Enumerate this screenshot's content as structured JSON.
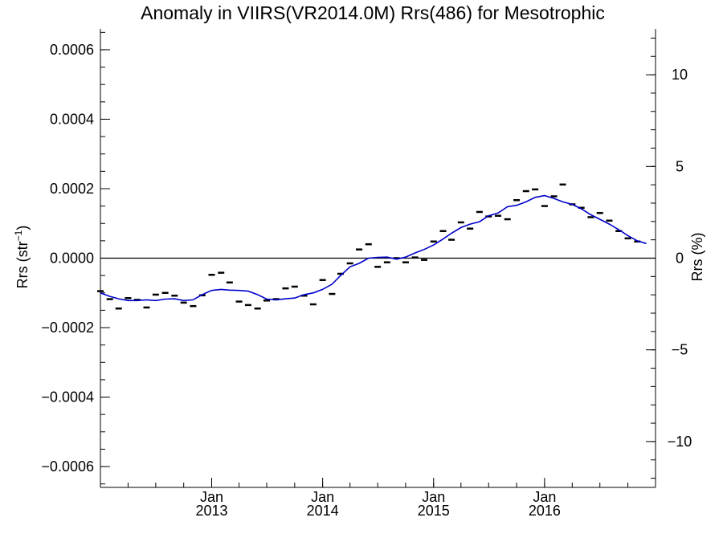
{
  "chart_data": {
    "type": "line",
    "title": "Anomaly in VIIRS(VR2014.0M) Rrs(486) for Mesotrophic",
    "ylabel_left": "Rrs (str",
    "ylabel_left_sup": "−1",
    "ylabel_left_end": ")",
    "ylabel_right": "Rrs (%)",
    "xlim": [
      "2012-01-01",
      "2016-12-31"
    ],
    "ylim_left": [
      -0.00066,
      0.00066
    ],
    "ylim_right": [
      -12.5,
      12.5
    ],
    "left_ticks": [
      {
        "value": 0.0006,
        "label": "0.0006"
      },
      {
        "value": 0.0004,
        "label": "0.0004"
      },
      {
        "value": 0.0002,
        "label": "0.0002"
      },
      {
        "value": 0.0,
        "label": "0.0000"
      },
      {
        "value": -0.0002,
        "label": "−0.0002"
      },
      {
        "value": -0.0004,
        "label": "−0.0004"
      },
      {
        "value": -0.0006,
        "label": "−0.0006"
      }
    ],
    "right_ticks": [
      {
        "value": 10,
        "label": "10"
      },
      {
        "value": 5,
        "label": "5"
      },
      {
        "value": 0,
        "label": "0"
      },
      {
        "value": -5,
        "label": "−5"
      },
      {
        "value": -10,
        "label": "−10"
      }
    ],
    "x_ticks": [
      {
        "date": "2013-01-01",
        "month": "Jan",
        "year": "2013"
      },
      {
        "date": "2014-01-01",
        "month": "Jan",
        "year": "2014"
      },
      {
        "date": "2015-01-01",
        "month": "Jan",
        "year": "2015"
      },
      {
        "date": "2016-01-01",
        "month": "Jan",
        "year": "2016"
      }
    ],
    "zero_line": 0,
    "series": [
      {
        "style": "markers",
        "color": "#000000",
        "points": [
          {
            "x": "2012-01-01",
            "y": -9.5e-05
          },
          {
            "x": "2012-02-01",
            "y": -0.000118
          },
          {
            "x": "2012-03-01",
            "y": -0.000145
          },
          {
            "x": "2012-04-01",
            "y": -0.000115
          },
          {
            "x": "2012-05-01",
            "y": -0.00012
          },
          {
            "x": "2012-06-01",
            "y": -0.000142
          },
          {
            "x": "2012-07-01",
            "y": -0.000105
          },
          {
            "x": "2012-08-01",
            "y": -0.0001
          },
          {
            "x": "2012-09-01",
            "y": -0.000108
          },
          {
            "x": "2012-10-01",
            "y": -0.000128
          },
          {
            "x": "2012-11-01",
            "y": -0.000138
          },
          {
            "x": "2012-12-01",
            "y": -0.000107
          },
          {
            "x": "2013-01-01",
            "y": -4.8e-05
          },
          {
            "x": "2013-02-01",
            "y": -4.2e-05
          },
          {
            "x": "2013-03-01",
            "y": -7e-05
          },
          {
            "x": "2013-04-01",
            "y": -0.000125
          },
          {
            "x": "2013-05-01",
            "y": -0.000135
          },
          {
            "x": "2013-06-01",
            "y": -0.000145
          },
          {
            "x": "2013-07-01",
            "y": -0.000122
          },
          {
            "x": "2013-08-01",
            "y": -0.000118
          },
          {
            "x": "2013-09-01",
            "y": -8.7e-05
          },
          {
            "x": "2013-10-01",
            "y": -8.2e-05
          },
          {
            "x": "2013-11-01",
            "y": -0.000108
          },
          {
            "x": "2013-12-01",
            "y": -0.000133
          },
          {
            "x": "2014-01-01",
            "y": -6.3e-05
          },
          {
            "x": "2014-02-01",
            "y": -0.000103
          },
          {
            "x": "2014-03-01",
            "y": -4.5e-05
          },
          {
            "x": "2014-04-01",
            "y": -1.5e-05
          },
          {
            "x": "2014-05-01",
            "y": 2.5e-05
          },
          {
            "x": "2014-06-01",
            "y": 4e-05
          },
          {
            "x": "2014-07-01",
            "y": -2.5e-05
          },
          {
            "x": "2014-08-01",
            "y": -1.2e-05
          },
          {
            "x": "2014-09-01",
            "y": 0.0
          },
          {
            "x": "2014-10-01",
            "y": -1.2e-05
          },
          {
            "x": "2014-11-01",
            "y": 2e-06
          },
          {
            "x": "2014-12-01",
            "y": -5e-06
          },
          {
            "x": "2015-01-01",
            "y": 4.8e-05
          },
          {
            "x": "2015-02-01",
            "y": 7.8e-05
          },
          {
            "x": "2015-03-01",
            "y": 5.3e-05
          },
          {
            "x": "2015-04-01",
            "y": 0.000103
          },
          {
            "x": "2015-05-01",
            "y": 8.5e-05
          },
          {
            "x": "2015-06-01",
            "y": 0.000133
          },
          {
            "x": "2015-07-01",
            "y": 0.00012
          },
          {
            "x": "2015-08-01",
            "y": 0.000122
          },
          {
            "x": "2015-09-01",
            "y": 0.000112
          },
          {
            "x": "2015-10-01",
            "y": 0.000167
          },
          {
            "x": "2015-11-01",
            "y": 0.000193
          },
          {
            "x": "2015-12-01",
            "y": 0.000198
          },
          {
            "x": "2016-01-01",
            "y": 0.00015
          },
          {
            "x": "2016-02-01",
            "y": 0.000178
          },
          {
            "x": "2016-03-01",
            "y": 0.000212
          },
          {
            "x": "2016-04-01",
            "y": 0.000155
          },
          {
            "x": "2016-05-01",
            "y": 0.000145
          },
          {
            "x": "2016-06-01",
            "y": 0.000118
          },
          {
            "x": "2016-07-01",
            "y": 0.00013
          },
          {
            "x": "2016-08-01",
            "y": 0.000108
          },
          {
            "x": "2016-09-01",
            "y": 7.8e-05
          },
          {
            "x": "2016-10-01",
            "y": 5.7e-05
          },
          {
            "x": "2016-11-01",
            "y": 4.8e-05
          }
        ]
      },
      {
        "style": "line",
        "color": "#0000cc",
        "points": [
          {
            "x": "2012-01-01",
            "y": -0.0001
          },
          {
            "x": "2012-02-01",
            "y": -0.00011
          },
          {
            "x": "2012-03-01",
            "y": -0.000117
          },
          {
            "x": "2012-04-01",
            "y": -0.000122
          },
          {
            "x": "2012-05-01",
            "y": -0.000122
          },
          {
            "x": "2012-06-01",
            "y": -0.00012
          },
          {
            "x": "2012-07-01",
            "y": -0.000122
          },
          {
            "x": "2012-08-01",
            "y": -0.000118
          },
          {
            "x": "2012-09-01",
            "y": -0.000117
          },
          {
            "x": "2012-10-01",
            "y": -0.000122
          },
          {
            "x": "2012-11-01",
            "y": -0.00012
          },
          {
            "x": "2012-12-01",
            "y": -0.000105
          },
          {
            "x": "2013-01-01",
            "y": -9.3e-05
          },
          {
            "x": "2013-02-01",
            "y": -9e-05
          },
          {
            "x": "2013-03-01",
            "y": -9.2e-05
          },
          {
            "x": "2013-04-01",
            "y": -9.3e-05
          },
          {
            "x": "2013-05-01",
            "y": -9.5e-05
          },
          {
            "x": "2013-06-01",
            "y": -0.000105
          },
          {
            "x": "2013-07-01",
            "y": -0.000118
          },
          {
            "x": "2013-08-01",
            "y": -0.00012
          },
          {
            "x": "2013-09-01",
            "y": -0.000117
          },
          {
            "x": "2013-10-01",
            "y": -0.000115
          },
          {
            "x": "2013-11-01",
            "y": -0.000105
          },
          {
            "x": "2013-12-01",
            "y": -0.0001
          },
          {
            "x": "2014-01-01",
            "y": -9e-05
          },
          {
            "x": "2014-02-01",
            "y": -7.5e-05
          },
          {
            "x": "2014-03-01",
            "y": -5e-05
          },
          {
            "x": "2014-04-01",
            "y": -2.5e-05
          },
          {
            "x": "2014-05-01",
            "y": -1.5e-05
          },
          {
            "x": "2014-06-01",
            "y": 0.0
          },
          {
            "x": "2014-07-01",
            "y": 2e-06
          },
          {
            "x": "2014-08-01",
            "y": 3e-06
          },
          {
            "x": "2014-09-01",
            "y": -3e-06
          },
          {
            "x": "2014-10-01",
            "y": 3e-06
          },
          {
            "x": "2014-11-01",
            "y": 1.5e-05
          },
          {
            "x": "2014-12-01",
            "y": 2.5e-05
          },
          {
            "x": "2015-01-01",
            "y": 3.8e-05
          },
          {
            "x": "2015-02-01",
            "y": 5.5e-05
          },
          {
            "x": "2015-03-01",
            "y": 7.2e-05
          },
          {
            "x": "2015-04-01",
            "y": 8.8e-05
          },
          {
            "x": "2015-05-01",
            "y": 9.8e-05
          },
          {
            "x": "2015-06-01",
            "y": 0.000105
          },
          {
            "x": "2015-07-01",
            "y": 0.000122
          },
          {
            "x": "2015-08-01",
            "y": 0.00013
          },
          {
            "x": "2015-09-01",
            "y": 0.000148
          },
          {
            "x": "2015-10-01",
            "y": 0.000152
          },
          {
            "x": "2015-11-01",
            "y": 0.000162
          },
          {
            "x": "2015-12-01",
            "y": 0.000175
          },
          {
            "x": "2016-01-01",
            "y": 0.00018
          },
          {
            "x": "2016-02-01",
            "y": 0.000172
          },
          {
            "x": "2016-03-01",
            "y": 0.000162
          },
          {
            "x": "2016-04-01",
            "y": 0.000155
          },
          {
            "x": "2016-05-01",
            "y": 0.000142
          },
          {
            "x": "2016-06-01",
            "y": 0.000125
          },
          {
            "x": "2016-07-01",
            "y": 0.000112
          },
          {
            "x": "2016-08-01",
            "y": 9.8e-05
          },
          {
            "x": "2016-09-01",
            "y": 8.2e-05
          },
          {
            "x": "2016-10-01",
            "y": 6.5e-05
          },
          {
            "x": "2016-11-01",
            "y": 5e-05
          },
          {
            "x": "2016-12-01",
            "y": 4.2e-05
          }
        ]
      }
    ],
    "grid": false,
    "legend": "none"
  }
}
